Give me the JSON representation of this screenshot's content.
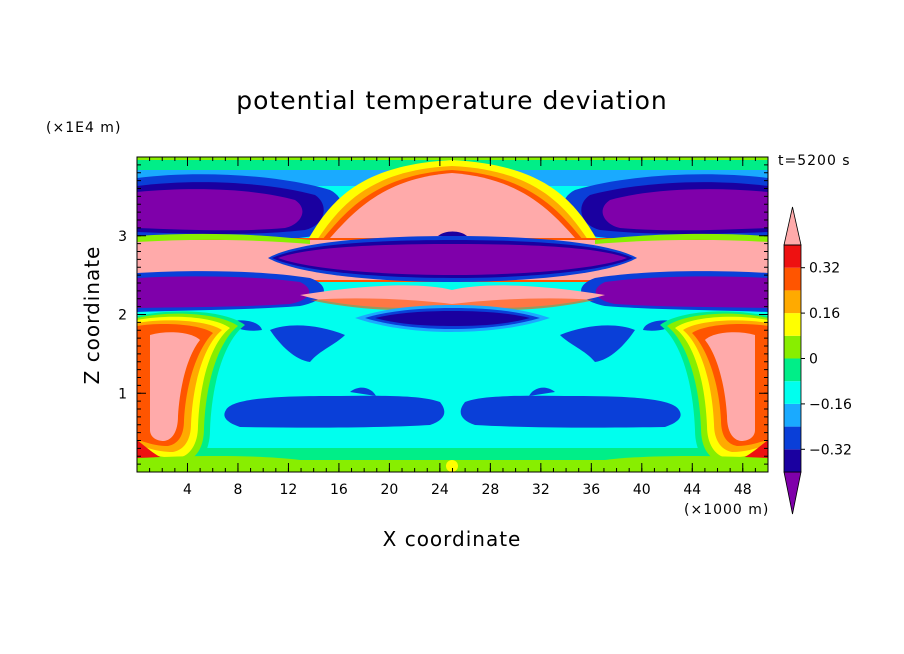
{
  "chart_data": {
    "type": "heatmap",
    "title": "potential temperature deviation",
    "xlabel": "X coordinate",
    "ylabel": "Z coordinate",
    "x_unit": "(×1000 m)",
    "y_unit": "(×1E4 m)",
    "time_label": "t=5200 s",
    "xlim": [
      0,
      50
    ],
    "ylim": [
      0,
      4
    ],
    "x_ticks": [
      4,
      8,
      12,
      16,
      20,
      24,
      28,
      32,
      36,
      40,
      44,
      48
    ],
    "y_ticks": [
      1,
      2,
      3
    ],
    "colorbar": {
      "levels": [
        -0.4,
        -0.32,
        -0.24,
        -0.16,
        -0.08,
        0,
        0.08,
        0.16,
        0.24,
        0.32,
        0.4
      ],
      "labels": [
        "0.32",
        "0.16",
        "0",
        "−0.16",
        "−0.32"
      ],
      "label_values": [
        0.32,
        0.16,
        0,
        -0.16,
        -0.32
      ],
      "colors": [
        "#7f00aa",
        "#1a00a0",
        "#0a3fd8",
        "#1aaaff",
        "#00ffee",
        "#00ee88",
        "#88ee00",
        "#ffff00",
        "#ffaa00",
        "#ff5500",
        "#ee1111",
        "#ffaaaa"
      ]
    }
  }
}
